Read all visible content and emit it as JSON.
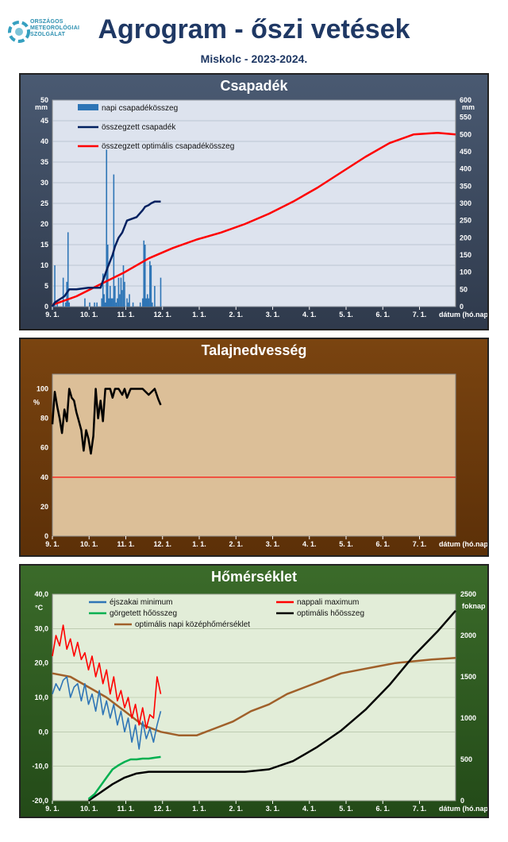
{
  "header": {
    "logo_lines": [
      "ORSZÁGOS",
      "METEOROLÓGIAI",
      "SZOLGÁLAT"
    ],
    "title": "Agrogram - őszi vetések",
    "subtitle": "Miskolc  - 2023-2024."
  },
  "colors": {
    "accent": "#1f3864",
    "precip_bar": "#2e75b6",
    "cum_precip": "#002060",
    "optimal": "#ff0000",
    "soil": "#000000",
    "threshold": "#ff0000",
    "tmin": "#2e75b6",
    "tmax": "#ff0000",
    "rolling": "#00b050",
    "opt_sum": "#000000",
    "opt_mean": "#a0602a"
  },
  "chart_data": [
    {
      "id": "csapadek",
      "type": "bar",
      "title": "Csapadék",
      "x_ticks": [
        "9. 1.",
        "10. 1.",
        "11. 1.",
        "12. 1.",
        "1. 1.",
        "2. 1.",
        "3. 1.",
        "4. 1.",
        "5. 1.",
        "6. 1.",
        "7. 1."
      ],
      "x_axis_label": "dátum (hó.nap)",
      "y_left_unit": "mm",
      "y_right_unit": "mm",
      "ylim_left": [
        0,
        50
      ],
      "ylim_right": [
        0,
        600
      ],
      "y_left_ticks": [
        0,
        5,
        10,
        15,
        20,
        25,
        30,
        35,
        40,
        45,
        50
      ],
      "y_right_ticks": [
        0,
        50,
        100,
        150,
        200,
        250,
        300,
        350,
        400,
        450,
        500,
        550,
        600
      ],
      "grid": true,
      "legend_position": "top-left",
      "series": [
        {
          "name": "napi csapadékösszeg",
          "kind": "bar",
          "axis": "left",
          "x": [
            2,
            3,
            4,
            5,
            6,
            7,
            8,
            9,
            10,
            11,
            12,
            13,
            14,
            15,
            16,
            17,
            18,
            19,
            20,
            21,
            22,
            23,
            24,
            25,
            26,
            27,
            28,
            29,
            30,
            31,
            32,
            33,
            34,
            35,
            36,
            37,
            38,
            39,
            40,
            41,
            42,
            43,
            44,
            45,
            46,
            47,
            48,
            49,
            50,
            51,
            52,
            53,
            54,
            55,
            56,
            57,
            58,
            59,
            60,
            61,
            62,
            63,
            64,
            65,
            66,
            67,
            68,
            69,
            70,
            71,
            72,
            73,
            74,
            75,
            76,
            77,
            78,
            79,
            80,
            81,
            82,
            83,
            84,
            85,
            86,
            87,
            88,
            89,
            90
          ],
          "values": [
            10,
            0,
            1,
            0,
            0,
            0,
            0,
            7,
            0,
            1,
            6,
            18,
            1,
            0,
            0,
            0,
            0,
            0,
            0,
            0,
            0,
            0,
            0,
            0,
            0,
            2,
            0,
            0,
            0,
            1,
            0,
            0,
            0,
            1,
            0,
            1,
            0,
            0,
            0,
            2,
            8,
            3,
            1,
            38,
            15,
            2,
            5,
            2,
            2,
            32,
            5,
            1,
            2,
            7,
            3,
            7,
            4,
            10,
            6,
            0,
            2,
            1,
            3,
            0,
            0,
            1,
            0,
            0,
            0,
            0,
            0,
            1,
            0,
            2,
            16,
            15,
            2,
            3,
            2,
            11,
            10,
            1,
            0,
            5,
            0,
            0,
            0,
            0,
            7
          ]
        },
        {
          "name": "összegzett csapadék",
          "kind": "line",
          "axis": "right",
          "x": [
            0,
            2,
            10,
            14,
            20,
            30,
            40,
            44,
            46,
            50,
            52,
            55,
            58,
            62,
            70,
            75,
            77,
            80,
            82,
            85,
            90
          ],
          "values": [
            0,
            12,
            30,
            50,
            50,
            55,
            55,
            95,
            115,
            150,
            175,
            200,
            215,
            250,
            260,
            280,
            290,
            295,
            300,
            305,
            305
          ]
        },
        {
          "name": "összegzett optimális csapadékösszeg",
          "kind": "line",
          "axis": "right",
          "x": [
            0,
            20,
            40,
            60,
            80,
            100,
            120,
            140,
            160,
            180,
            200,
            220,
            240,
            260,
            280,
            300,
            320,
            335
          ],
          "values": [
            5,
            30,
            65,
            100,
            140,
            170,
            195,
            215,
            240,
            270,
            305,
            345,
            390,
            435,
            475,
            500,
            505,
            500
          ]
        }
      ]
    },
    {
      "id": "talajnedvesseg",
      "type": "line",
      "title": "Talajnedvesség",
      "x_ticks": [
        "9. 1.",
        "10. 1.",
        "11. 1.",
        "12. 1.",
        "1. 1.",
        "2. 1.",
        "3. 1.",
        "4. 1.",
        "5. 1.",
        "6. 1.",
        "7. 1."
      ],
      "x_axis_label": "dátum (hó.nap)",
      "y_unit": "%",
      "ylim": [
        0,
        110
      ],
      "y_ticks": [
        0,
        20,
        40,
        60,
        80,
        100
      ],
      "grid": false,
      "threshold": 40,
      "series": [
        {
          "name": "",
          "x": [
            0,
            2,
            4,
            6,
            8,
            10,
            12,
            14,
            16,
            18,
            20,
            22,
            24,
            26,
            28,
            30,
            32,
            34,
            36,
            38,
            40,
            42,
            44,
            46,
            48,
            50,
            52,
            55,
            58,
            60,
            62,
            65,
            70,
            75,
            80,
            85,
            88,
            90
          ],
          "values": [
            76,
            98,
            88,
            80,
            70,
            86,
            78,
            100,
            94,
            92,
            84,
            78,
            72,
            58,
            72,
            66,
            56,
            68,
            100,
            80,
            92,
            78,
            100,
            100,
            100,
            94,
            100,
            100,
            96,
            100,
            94,
            100,
            100,
            100,
            96,
            100,
            93,
            89
          ]
        }
      ]
    },
    {
      "id": "homerseklet",
      "type": "line",
      "title": "Hőmérséklet",
      "x_ticks": [
        "9. 1.",
        "10. 1.",
        "11. 1.",
        "12. 1.",
        "1. 1.",
        "2. 1.",
        "3. 1.",
        "4. 1.",
        "5. 1.",
        "6. 1.",
        "7. 1."
      ],
      "x_axis_label": "dátum (hó.nap)",
      "y_left_unit": "°C",
      "y_right_unit": "foknap",
      "ylim_left": [
        -20,
        40
      ],
      "ylim_right": [
        0,
        2500
      ],
      "y_left_ticks": [
        "-20,0",
        "-10,0",
        "0,0",
        "10,0",
        "20,0",
        "30,0",
        "40,0"
      ],
      "y_right_ticks": [
        0,
        500,
        1000,
        1500,
        2000,
        2500
      ],
      "grid": true,
      "legend_position": "top",
      "series": [
        {
          "name": "éjszakai minimum",
          "axis": "left",
          "x": [
            0,
            3,
            6,
            9,
            12,
            15,
            18,
            21,
            24,
            27,
            30,
            33,
            36,
            39,
            42,
            45,
            48,
            51,
            54,
            57,
            60,
            63,
            66,
            69,
            72,
            75,
            78,
            81,
            84,
            87,
            90
          ],
          "values": [
            11,
            14,
            12,
            15,
            16,
            10,
            13,
            14,
            9,
            14,
            8,
            11,
            6,
            12,
            5,
            9,
            4,
            8,
            2,
            6,
            0,
            4,
            -3,
            2,
            -5,
            3,
            -2,
            1,
            -3,
            2,
            6
          ]
        },
        {
          "name": "nappali maximum",
          "axis": "left",
          "x": [
            0,
            3,
            6,
            9,
            12,
            15,
            18,
            21,
            24,
            27,
            30,
            33,
            36,
            39,
            42,
            45,
            48,
            51,
            54,
            57,
            60,
            63,
            66,
            69,
            72,
            75,
            78,
            81,
            84,
            87,
            90
          ],
          "values": [
            22,
            28,
            25,
            31,
            24,
            27,
            22,
            26,
            21,
            23,
            18,
            22,
            16,
            20,
            14,
            18,
            11,
            16,
            9,
            12,
            7,
            10,
            4,
            8,
            2,
            7,
            1,
            5,
            4,
            16,
            11
          ]
        },
        {
          "name": "görgetett hőösszeg",
          "axis": "right",
          "x": [
            30,
            35,
            40,
            45,
            50,
            55,
            60,
            65,
            70,
            75,
            80,
            85,
            90
          ],
          "values": [
            20,
            80,
            180,
            280,
            380,
            430,
            470,
            500,
            500,
            510,
            510,
            520,
            530
          ]
        },
        {
          "name": "optimális hőösszeg",
          "axis": "right",
          "x": [
            30,
            40,
            50,
            60,
            70,
            80,
            100,
            120,
            140,
            160,
            180,
            200,
            220,
            240,
            260,
            280,
            300,
            320,
            335
          ],
          "values": [
            0,
            100,
            200,
            280,
            330,
            350,
            350,
            350,
            350,
            350,
            380,
            480,
            650,
            850,
            1100,
            1400,
            1750,
            2050,
            2300
          ]
        },
        {
          "name": "optimális napi középhőmérséklet",
          "axis": "left",
          "x": [
            0,
            15,
            30,
            45,
            60,
            75,
            90,
            105,
            120,
            135,
            150,
            165,
            180,
            195,
            210,
            225,
            240,
            255,
            270,
            285,
            300,
            315,
            335
          ],
          "values": [
            17,
            16,
            13,
            10,
            6,
            2,
            0,
            -1,
            -1,
            1,
            3,
            6,
            8,
            11,
            13,
            15,
            17,
            18,
            19,
            20,
            20.5,
            21,
            21.5
          ]
        }
      ]
    }
  ]
}
